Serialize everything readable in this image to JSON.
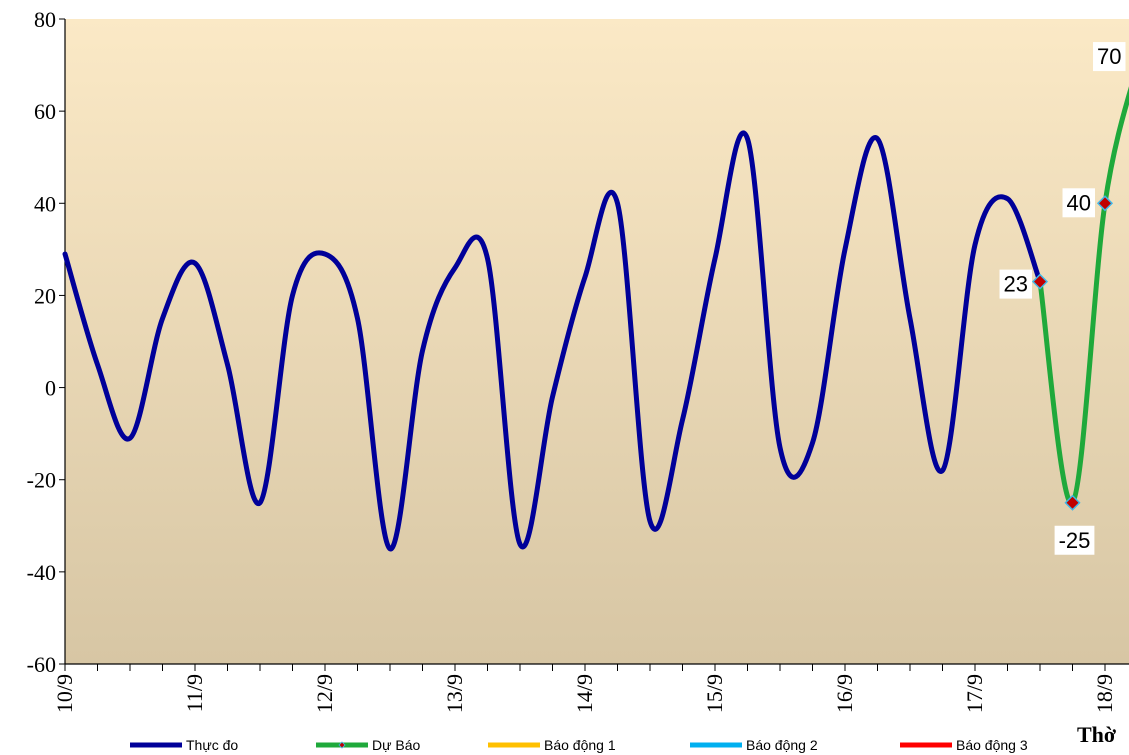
{
  "chart_data": {
    "type": "line",
    "ylim": [
      -60,
      80
    ],
    "y_ticks": [
      "80",
      "60",
      "40",
      "20",
      "0",
      "-20",
      "-40",
      "-60"
    ],
    "x_tick_labels": [
      "10/9",
      "11/9",
      "12/9",
      "13/9",
      "14/9",
      "15/9",
      "16/9",
      "17/9",
      "18/9"
    ],
    "x_axis_title": "Thờ",
    "plot_background": [
      "#fbe9c6",
      "#d7c6a4"
    ],
    "grid": false,
    "legend_position": "bottom",
    "series": [
      {
        "name": "Thực đo",
        "color": "#000099",
        "x": [
          0,
          0.25,
          0.5,
          0.75,
          1,
          1.25,
          1.5,
          1.75,
          2,
          2.25,
          2.5,
          2.75,
          3,
          3.25,
          3.5,
          3.75,
          4,
          4.25,
          4.5,
          4.75,
          5,
          5.25,
          5.5,
          5.75,
          6,
          6.25,
          6.5,
          6.75,
          7,
          7.25,
          7.5
        ],
        "y": [
          29,
          5,
          -11,
          15,
          27,
          5,
          -25,
          20,
          29,
          15,
          -35,
          8,
          26,
          28,
          -34,
          -2,
          24,
          40,
          -29,
          -7,
          28,
          54,
          -13,
          -12,
          30,
          54,
          15,
          -18,
          31,
          41,
          23
        ]
      },
      {
        "name": "Dự Báo",
        "color": "#1fa93b",
        "x": [
          7.5,
          7.75,
          8,
          8.25
        ],
        "y": [
          23,
          -25,
          40,
          70
        ],
        "data_labels": [
          "23",
          "-25",
          "40",
          "70"
        ]
      },
      {
        "name": "Báo động 1",
        "color": "#ffc000",
        "x": [],
        "y": []
      },
      {
        "name": "Báo động 2",
        "color": "#00b0f0",
        "x": [],
        "y": []
      },
      {
        "name": "Báo động 3",
        "color": "#ff0000",
        "x": [],
        "y": []
      }
    ]
  }
}
